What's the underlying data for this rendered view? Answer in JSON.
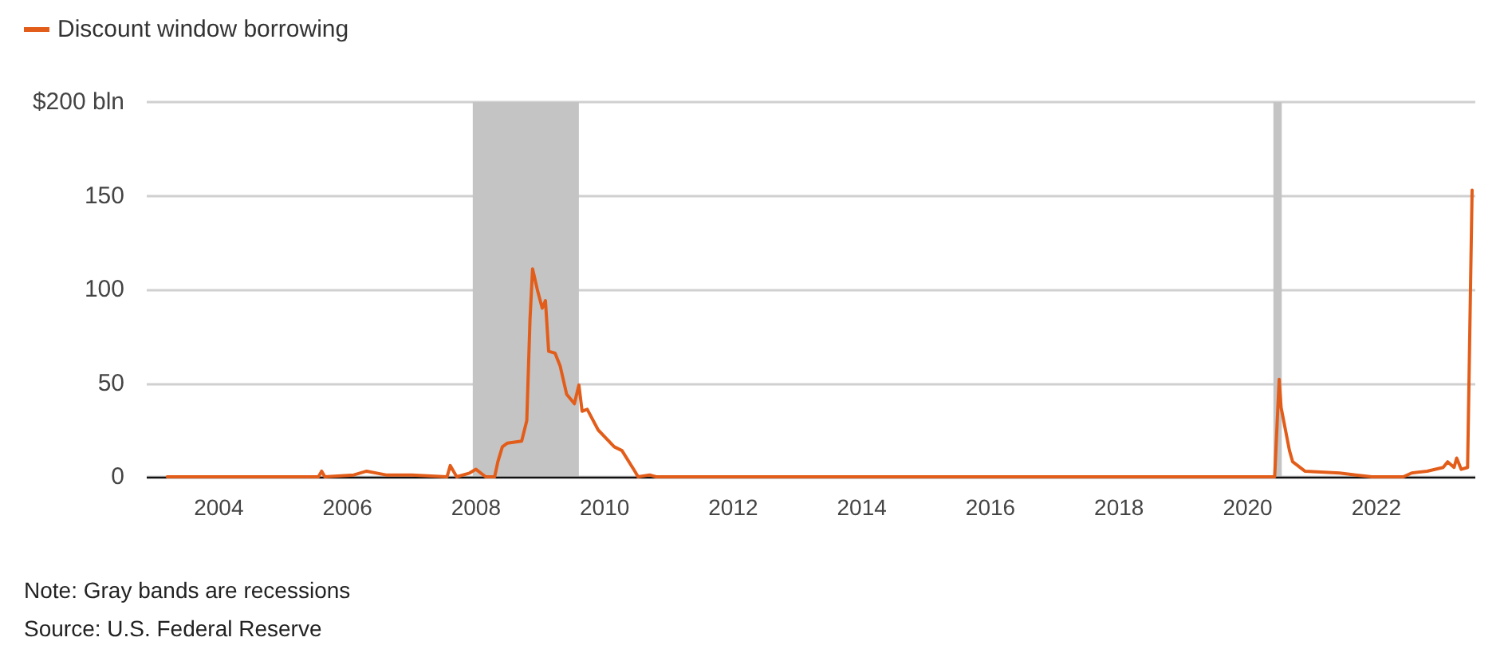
{
  "chart_data": {
    "type": "line",
    "series": [
      {
        "name": "Discount window borrowing",
        "color": "#e35d1a",
        "x": [
          2003.2,
          2005.55,
          2005.6,
          2005.65,
          2006.1,
          2006.3,
          2006.6,
          2007.0,
          2007.55,
          2007.6,
          2007.7,
          2007.9,
          2008.0,
          2008.15,
          2008.29,
          2008.34,
          2008.41,
          2008.49,
          2008.71,
          2008.79,
          2008.84,
          2008.88,
          2008.96,
          2009.03,
          2009.08,
          2009.13,
          2009.23,
          2009.31,
          2009.41,
          2009.53,
          2009.6,
          2009.65,
          2009.73,
          2009.9,
          2010.15,
          2010.27,
          2010.47,
          2010.52,
          2010.7,
          2010.8,
          2020.42,
          2020.49,
          2020.52,
          2020.65,
          2020.7,
          2020.89,
          2021.43,
          2021.68,
          2021.93,
          2022.42,
          2022.55,
          2022.79,
          2023.04,
          2023.11,
          2023.21,
          2023.25,
          2023.32,
          2023.42,
          2023.49
        ],
        "values": [
          0,
          0,
          3,
          0,
          1,
          3,
          1,
          1,
          0,
          6,
          0,
          2,
          4,
          0,
          0,
          8,
          16,
          18,
          19,
          30,
          84,
          111,
          99,
          90,
          94,
          67,
          66,
          59,
          44,
          39,
          49,
          35,
          36,
          25,
          16,
          14,
          3,
          0,
          1,
          0,
          0,
          52,
          37,
          14,
          8,
          3,
          2,
          1,
          0,
          0,
          2,
          3,
          5,
          8,
          5,
          10,
          4,
          5,
          153
        ]
      }
    ],
    "xlim": [
      2002.88,
      2023.54
    ],
    "xticks": [
      2004,
      2006,
      2008,
      2010,
      2012,
      2014,
      2016,
      2018,
      2020,
      2022
    ],
    "ylim": [
      0,
      200
    ],
    "yticks": [
      0,
      50,
      100,
      150,
      {
        "value": 200,
        "label": "$200 bln"
      }
    ],
    "bands": [
      {
        "axis": "x",
        "from": 2007.95,
        "to": 2009.6,
        "color": "#c4c4c4"
      },
      {
        "axis": "x",
        "from": 2020.4,
        "to": 2020.53,
        "color": "#c4c4c4"
      }
    ],
    "grid": "y",
    "legend": "top left",
    "marker": "none",
    "line_style": "solid",
    "annotations": [
      "Note: Gray bands are recessions",
      "Source: U.S. Federal Reserve"
    ]
  }
}
